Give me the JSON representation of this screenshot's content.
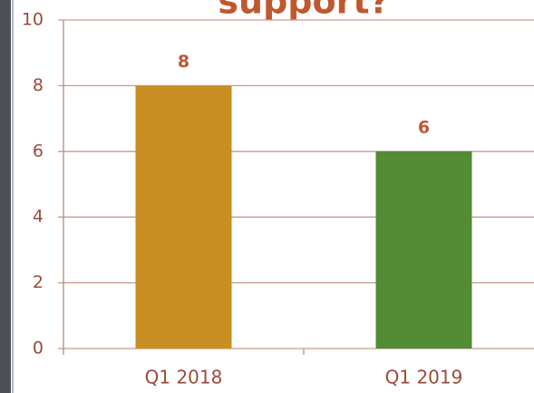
{
  "chart_data": {
    "type": "bar",
    "title": "support?",
    "categories": [
      "Q1 2018",
      "Q1 2019"
    ],
    "values": [
      8,
      6
    ],
    "colors": [
      "#c98f22",
      "#548b35"
    ],
    "ylim": [
      0,
      10
    ],
    "yticks": [
      0,
      2,
      4,
      6,
      8,
      10
    ],
    "grid": true
  }
}
